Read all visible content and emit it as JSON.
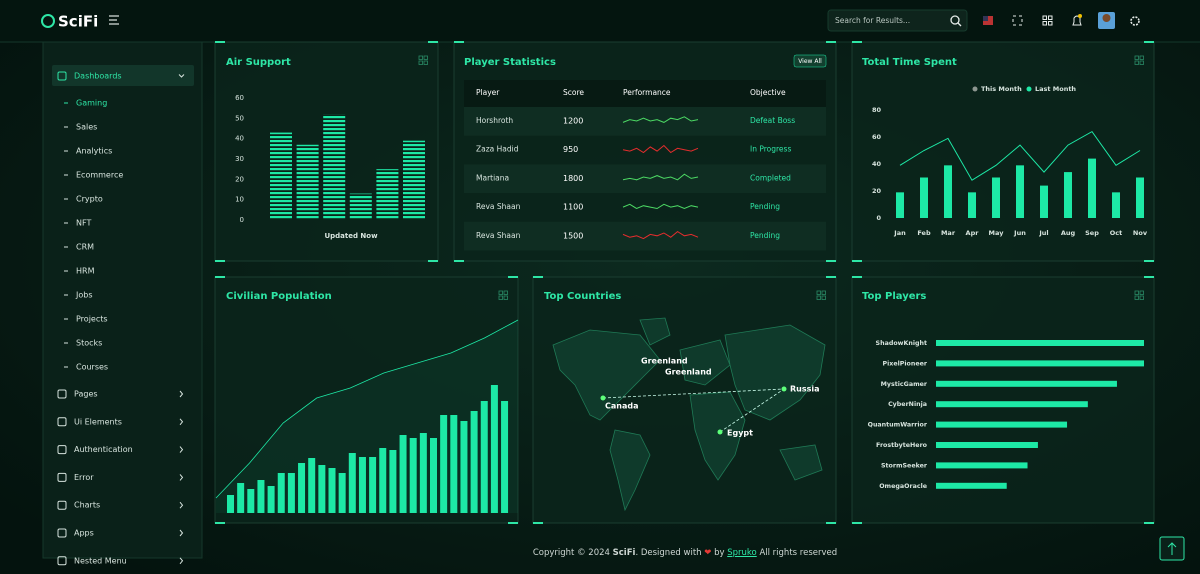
{
  "header": {
    "brand": "SciFi",
    "search_placeholder": "Search for Results..."
  },
  "sidebar": {
    "menu": [
      {
        "label": "Dashboards",
        "children": [
          "Gaming",
          "Sales",
          "Analytics",
          "Ecommerce",
          "Crypto",
          "NFT",
          "CRM",
          "HRM",
          "Jobs",
          "Projects",
          "Stocks",
          "Courses"
        ]
      },
      {
        "label": "Pages"
      },
      {
        "label": "Ui Elements"
      },
      {
        "label": "Authentication"
      },
      {
        "label": "Error"
      },
      {
        "label": "Charts"
      },
      {
        "label": "Apps"
      },
      {
        "label": "Nested Menu"
      }
    ]
  },
  "air_support": {
    "type": "bar",
    "title": "Air Support",
    "values": [
      43,
      37,
      52,
      13,
      25,
      39
    ],
    "ylim": [
      0,
      60
    ],
    "yticks": [
      0,
      10,
      20,
      30,
      40,
      50,
      60
    ],
    "color": "#1de9a6",
    "caption": "Updated Now"
  },
  "player_statistics": {
    "title": "Player Statistics",
    "button": "View All",
    "columns": [
      "Player",
      "Score",
      "Performance",
      "Objective"
    ],
    "rows": [
      {
        "player": "Horshroth",
        "score": 1200,
        "objective": "Defeat Boss",
        "trend_color": "#4cd964",
        "performance": [
          4,
          6,
          5,
          7,
          5,
          6,
          4,
          7,
          6,
          8,
          5,
          6
        ]
      },
      {
        "player": "Zaza Hadid",
        "score": 950,
        "objective": "In Progress",
        "trend_color": "#e52d2d",
        "performance": [
          5,
          4,
          6,
          3,
          7,
          4,
          8,
          3,
          6,
          5,
          4,
          6
        ]
      },
      {
        "player": "Martiana",
        "score": 1800,
        "objective": "Completed",
        "trend_color": "#4cd964",
        "performance": [
          4,
          5,
          4,
          6,
          5,
          7,
          5,
          6,
          4,
          8,
          5,
          6
        ]
      },
      {
        "player": "Reva Shaan",
        "score": 1100,
        "objective": "Pending",
        "trend_color": "#4cd964",
        "performance": [
          5,
          7,
          4,
          6,
          5,
          4,
          7,
          5,
          6,
          4,
          6,
          5
        ]
      },
      {
        "player": "Reva Shaan",
        "score": 1500,
        "objective": "Pending",
        "trend_color": "#e52d2d",
        "performance": [
          6,
          4,
          5,
          3,
          6,
          5,
          7,
          4,
          8,
          5,
          6,
          4
        ]
      }
    ]
  },
  "total_time_spent": {
    "type": "bar-line",
    "title": "Total Time Spent",
    "categories": [
      "Jan",
      "Feb",
      "Mar",
      "Apr",
      "May",
      "Jun",
      "Jul",
      "Aug",
      "Sep",
      "Oct",
      "Nov"
    ],
    "series": [
      {
        "name": "This Month",
        "type": "line",
        "color": "#1de9a6",
        "legend_color": "#8d9690",
        "values": [
          39,
          50,
          59,
          28,
          39,
          54,
          34,
          54,
          64,
          39,
          50
        ]
      },
      {
        "name": "Last Month",
        "type": "bar",
        "color": "#1de9a6",
        "values": [
          19,
          30,
          39,
          19,
          30,
          39,
          24,
          34,
          44,
          19,
          30
        ]
      }
    ],
    "ylim": [
      0,
      80
    ],
    "yticks": [
      0,
      20,
      40,
      60,
      80
    ]
  },
  "civilian_population": {
    "title": "Civilian Population",
    "color": "#1de9a6",
    "bars": [
      18,
      30,
      24,
      33,
      27,
      40,
      40,
      50,
      55,
      48,
      45,
      40,
      60,
      56,
      56,
      65,
      63,
      78,
      75,
      80,
      75,
      98,
      98,
      92,
      102,
      112,
      128,
      112
    ],
    "line": [
      15,
      50,
      90,
      115,
      125,
      140,
      150,
      160,
      175,
      193
    ]
  },
  "top_countries": {
    "title": "Top Countries",
    "places": [
      "Greenland",
      "Greenland",
      "Canada",
      "Russia",
      "Egypt"
    ]
  },
  "top_players": {
    "title": "Top Players",
    "color": "#1de9a6",
    "categories": [
      "ShadowKnight",
      "PixelPioneer",
      "MysticGamer",
      "CyberNinja",
      "QuantumWarrior",
      "FrostbyteHero",
      "StormSeeker",
      "OmegaOracle"
    ],
    "values": [
      100,
      100,
      87,
      73,
      63,
      49,
      44,
      34
    ]
  },
  "footer": {
    "prefix": "Copyright © 2024",
    "brand": "SciFi",
    "middle": ". Designed with",
    "by": "by",
    "author": "Spruko",
    "suffix": "All rights reserved"
  }
}
